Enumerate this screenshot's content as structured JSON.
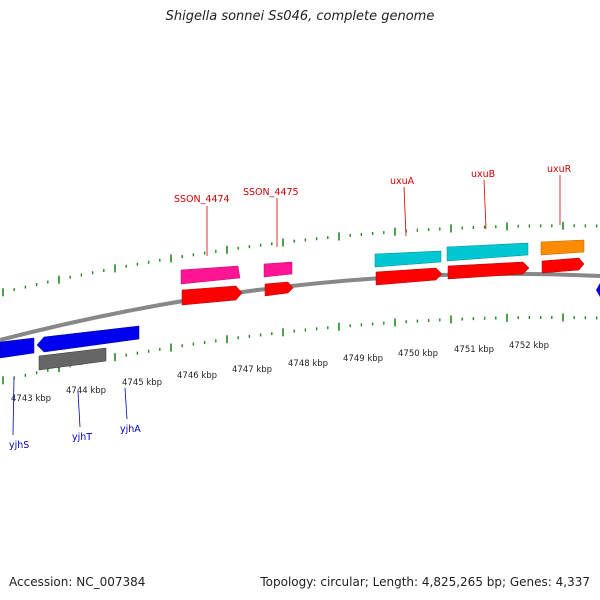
{
  "title": "Shigella sonnei Ss046, complete genome",
  "footer": {
    "accession": "Accession: NC_007384",
    "summary": "Topology: circular; Length: 4,825,265 bp; Genes: 4,337"
  },
  "colors": {
    "backbone": "#888888",
    "ticks": "#1f8a1f",
    "forward_label": "#cc0000",
    "reverse_label": "#0000bb",
    "cds": "#ff0000",
    "other_rna": "#ff1493",
    "uxu_genes": "#00c8d2",
    "uxuR": "#ff8c00",
    "reverse_cds": "#0000ee",
    "reverse_other": "#666666"
  },
  "scale_labels": [
    "4743 kbp",
    "4744 kbp",
    "4745 kbp",
    "4746 kbp",
    "4747 kbp",
    "4748 kbp",
    "4749 kbp",
    "4750 kbp",
    "4751 kbp",
    "4752 kbp"
  ],
  "forward_genes": [
    {
      "name": "SSON_4474",
      "color_key": "other_rna"
    },
    {
      "name": "SSON_4475",
      "color_key": "other_rna"
    },
    {
      "name": "uxuA",
      "color_key": "uxu_genes"
    },
    {
      "name": "uxuB",
      "color_key": "uxu_genes"
    },
    {
      "name": "uxuR",
      "color_key": "uxuR"
    }
  ],
  "reverse_genes": [
    {
      "name": "yjhS",
      "color_key": "reverse_cds"
    },
    {
      "name": "yjhT",
      "color_key": "reverse_other"
    },
    {
      "name": "yjhA",
      "color_key": "reverse_cds"
    }
  ]
}
